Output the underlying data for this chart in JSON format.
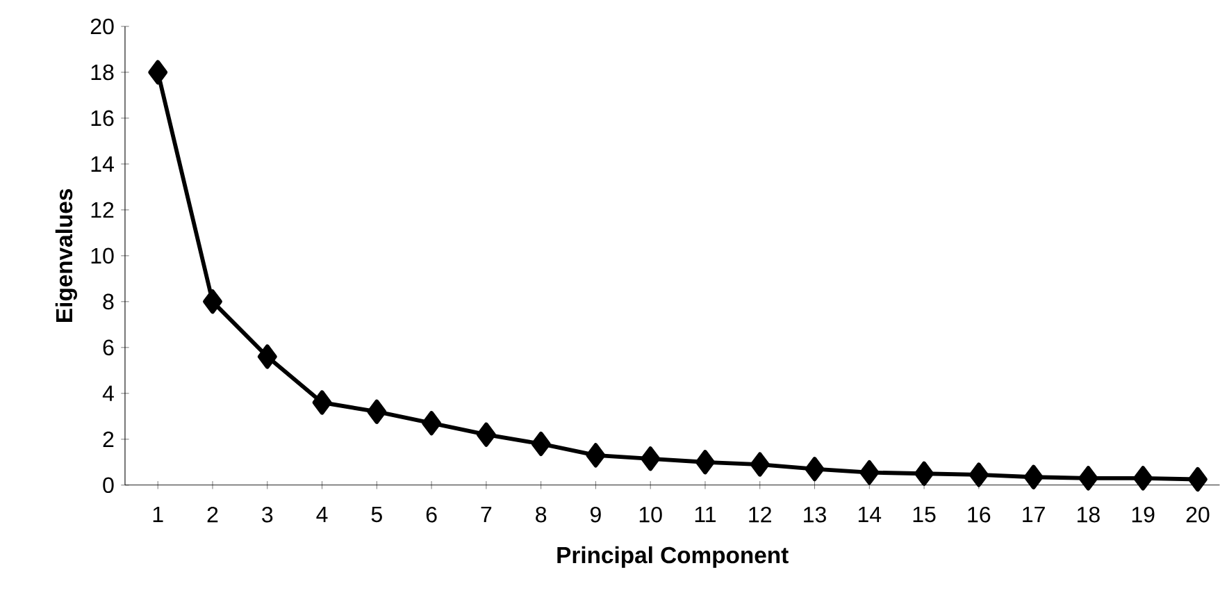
{
  "chart_data": {
    "type": "line",
    "xlabel": "Principal  Component",
    "ylabel": "Eigenvalues",
    "categories": [
      "1",
      "2",
      "3",
      "4",
      "5",
      "6",
      "7",
      "8",
      "9",
      "10",
      "11",
      "12",
      "13",
      "14",
      "15",
      "16",
      "17",
      "18",
      "19",
      "20"
    ],
    "values": [
      18.0,
      8.0,
      5.6,
      3.6,
      3.2,
      2.7,
      2.2,
      1.8,
      1.3,
      1.15,
      1.0,
      0.9,
      0.7,
      0.55,
      0.5,
      0.45,
      0.35,
      0.3,
      0.3,
      0.25
    ],
    "color": "#000000",
    "marker": "diamond",
    "line_style": "solid",
    "ylim": [
      0,
      20
    ],
    "yticks": [
      0,
      2,
      4,
      6,
      8,
      10,
      12,
      14,
      16,
      18,
      20
    ]
  }
}
